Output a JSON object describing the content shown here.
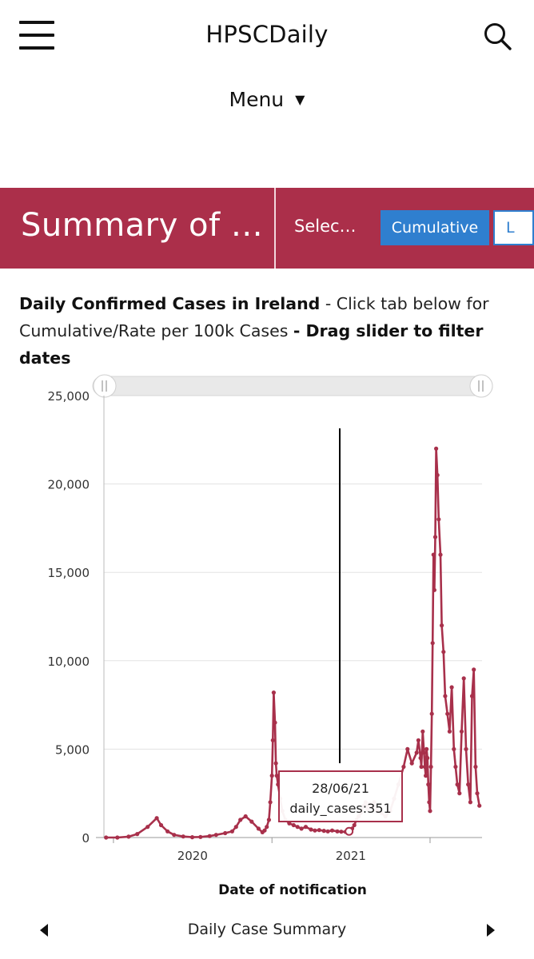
{
  "header": {
    "app_title": "HPSCDaily",
    "menu_label": "Menu"
  },
  "banner": {
    "title": "Summary of …",
    "select_label": "Selec…",
    "tab_cumulative": "Cumulative",
    "tab_second_partial": "L"
  },
  "description": {
    "bold_title": "Daily Confirmed Cases in Ireland",
    "text": " - Click tab below for Cumulative/Rate per 100k Cases ",
    "bold_hint": "- Drag slider to filter dates"
  },
  "tooltip": {
    "date": "28/06/21",
    "value_text": "daily_cases:351"
  },
  "footer": {
    "label": "Daily Case Summary"
  },
  "colors": {
    "brand": "#ab2f4a",
    "accent_blue": "#2f7fcf",
    "series": "#a8304b"
  },
  "chart_data": {
    "type": "line",
    "title": "",
    "xlabel": "Date of notification",
    "ylabel": "",
    "ylim": [
      0,
      25000
    ],
    "y_ticks": [
      "0",
      "5,000",
      "10,000",
      "15,000",
      "20,000",
      "25,000"
    ],
    "x_ticks": [
      "2020",
      "2021"
    ],
    "grid": true,
    "series": [
      {
        "x": [
          "2019-12-15",
          "2020-01-10",
          "2020-02-05",
          "2020-02-25",
          "2020-03-20",
          "2020-04-10",
          "2020-04-20",
          "2020-05-05",
          "2020-05-20",
          "2020-06-10",
          "2020-07-01",
          "2020-07-20",
          "2020-08-10",
          "2020-08-25",
          "2020-09-15",
          "2020-10-01",
          "2020-10-10",
          "2020-10-20",
          "2020-11-01",
          "2020-11-15",
          "2020-12-01",
          "2020-12-10",
          "2020-12-15",
          "2020-12-20",
          "2020-12-25",
          "2020-12-28",
          "2021-01-01",
          "2021-01-03",
          "2021-01-05",
          "2021-01-08",
          "2021-01-10",
          "2021-01-12",
          "2021-01-15",
          "2021-01-20",
          "2021-01-25",
          "2021-02-01",
          "2021-02-10",
          "2021-02-20",
          "2021-03-01",
          "2021-03-10",
          "2021-03-20",
          "2021-04-01",
          "2021-04-10",
          "2021-04-20",
          "2021-05-01",
          "2021-05-10",
          "2021-05-20",
          "2021-06-01",
          "2021-06-10",
          "2021-06-20",
          "2021-06-28",
          "2021-07-05",
          "2021-07-10",
          "2021-07-15",
          "2021-07-20",
          "2021-07-25",
          "2021-08-01",
          "2021-08-05",
          "2021-08-10",
          "2021-08-15",
          "2021-08-20",
          "2021-08-25",
          "2021-09-01",
          "2021-09-10",
          "2021-09-20",
          "2021-10-01",
          "2021-10-10",
          "2021-10-20",
          "2021-11-01",
          "2021-11-10",
          "2021-11-20",
          "2021-12-01",
          "2021-12-05",
          "2021-12-10",
          "2021-12-12",
          "2021-12-15",
          "2021-12-18",
          "2021-12-20",
          "2021-12-22",
          "2021-12-24",
          "2021-12-26",
          "2021-12-28",
          "2021-12-30",
          "2022-01-01",
          "2022-01-03",
          "2022-01-05",
          "2022-01-07",
          "2022-01-09",
          "2022-01-11",
          "2022-01-13",
          "2022-01-15",
          "2022-01-18",
          "2022-01-21",
          "2022-01-25",
          "2022-01-28",
          "2022-02-01",
          "2022-02-05",
          "2022-02-10",
          "2022-02-15",
          "2022-02-20",
          "2022-02-25",
          "2022-03-01",
          "2022-03-05",
          "2022-03-10",
          "2022-03-15",
          "2022-03-20",
          "2022-03-25",
          "2022-03-30",
          "2022-04-04",
          "2022-04-08",
          "2022-04-12",
          "2022-04-16",
          "2022-04-20",
          "2022-04-25"
        ],
        "y": [
          0,
          0,
          50,
          200,
          600,
          1100,
          700,
          350,
          150,
          60,
          20,
          30,
          80,
          150,
          250,
          350,
          600,
          1000,
          1200,
          900,
          500,
          300,
          400,
          600,
          1000,
          2000,
          3500,
          5500,
          8200,
          6500,
          4200,
          3500,
          3000,
          2200,
          1500,
          1000,
          800,
          700,
          600,
          500,
          600,
          450,
          400,
          420,
          380,
          350,
          400,
          350,
          330,
          320,
          351,
          500,
          700,
          1000,
          1200,
          1400,
          1800,
          2000,
          1600,
          1900,
          1700,
          2000,
          1500,
          1400,
          1200,
          1500,
          2200,
          3000,
          4000,
          5000,
          4200,
          4800,
          5500,
          4500,
          4000,
          6000,
          4800,
          4000,
          3500,
          5000,
          4500,
          3000,
          2000,
          1500,
          4000,
          7000,
          11000,
          16000,
          14000,
          17000,
          22000,
          20500,
          18000,
          16000,
          12000,
          10500,
          8000,
          7000,
          6000,
          8500,
          5000,
          4000,
          3000,
          2500,
          6000,
          9000,
          5000,
          3000,
          2000,
          8000,
          9500,
          4000,
          2500,
          1800
        ]
      }
    ],
    "selection": {
      "date": "28/06/21",
      "value": 351
    }
  }
}
